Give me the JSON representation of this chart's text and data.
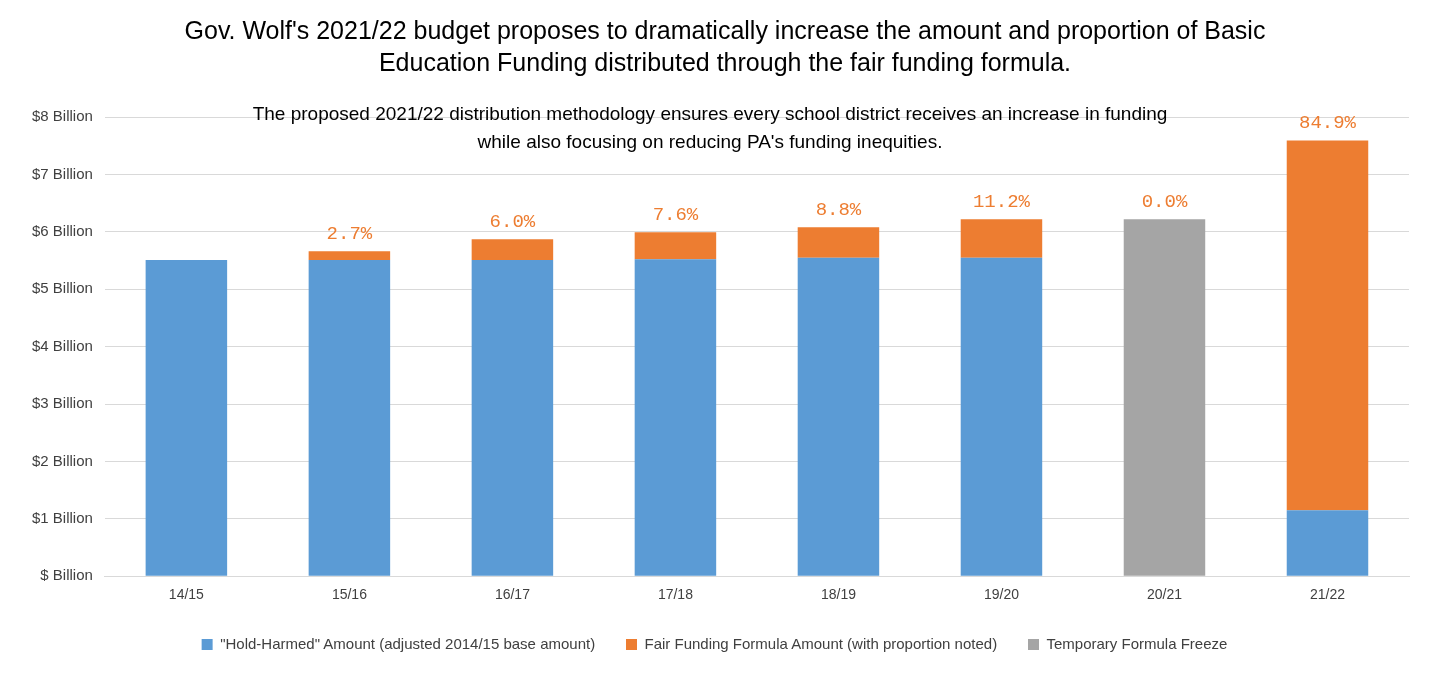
{
  "chart_data": {
    "type": "bar",
    "stacked": true,
    "title": "Gov. Wolf's 2021/22 budget proposes to dramatically increase the amount and proportion of Basic Education Funding distributed through the fair funding formula.",
    "subtitle": "The proposed 2021/22  distribution methodology ensures every school district receives an increase in funding while also focusing on reducing PA's funding inequities.",
    "categories": [
      "14/15",
      "15/16",
      "16/17",
      "17/18",
      "18/19",
      "19/20",
      "20/21",
      "21/22"
    ],
    "series": [
      {
        "name": "\"Hold-Harmed\" Amount (adjusted 2014/15 base amount)",
        "color": "#5b9bd5",
        "values": [
          5.51,
          5.51,
          5.51,
          5.52,
          5.55,
          5.55,
          null,
          1.15
        ]
      },
      {
        "name": "Fair Funding Formula Amount (with proportion noted)",
        "color": "#ed7d31",
        "values": [
          null,
          0.15,
          0.36,
          0.47,
          0.53,
          0.67,
          0,
          6.44
        ]
      },
      {
        "name": "Temporary Formula Freeze",
        "color": "#a5a5a5",
        "values": [
          null,
          null,
          null,
          null,
          null,
          null,
          6.22,
          null
        ]
      }
    ],
    "ylim": [
      0,
      8
    ],
    "yticks": [
      {
        "value": 0,
        "label": "$ Billion"
      },
      {
        "value": 1,
        "label": "$1 Billion"
      },
      {
        "value": 2,
        "label": "$2 Billion"
      },
      {
        "value": 3,
        "label": "$3 Billion"
      },
      {
        "value": 4,
        "label": "$4 Billion"
      },
      {
        "value": 5,
        "label": "$5 Billion"
      },
      {
        "value": 6,
        "label": "$6 Billion"
      },
      {
        "value": 7,
        "label": "$7 Billion"
      },
      {
        "value": 8,
        "label": "$8 Billion"
      }
    ],
    "annotations": [
      {
        "text": "2.7%",
        "x": "15/16",
        "y": 5.66
      },
      {
        "text": "6.0%",
        "x": "16/17",
        "y": 5.87
      },
      {
        "text": "7.6%",
        "x": "17/18",
        "y": 5.99
      },
      {
        "text": "8.8%",
        "x": "18/19",
        "y": 6.08
      },
      {
        "text": "11.2%",
        "x": "19/20",
        "y": 6.22
      },
      {
        "text": "0.0%",
        "x": "20/21",
        "y": 6.22
      },
      {
        "text": "84.9%",
        "x": "21/22",
        "y": 7.59
      }
    ],
    "grid": "y",
    "legend": "bottom"
  }
}
